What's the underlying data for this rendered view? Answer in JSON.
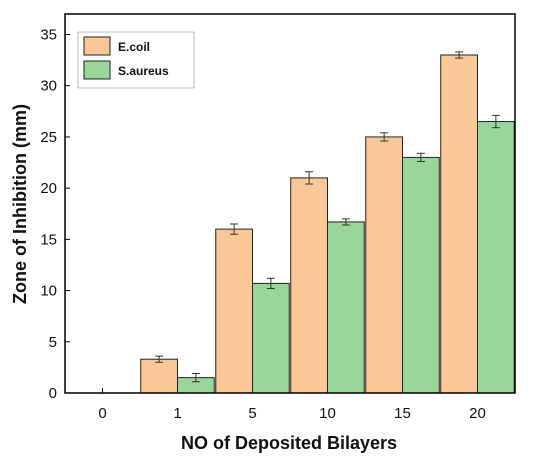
{
  "chart_data": {
    "type": "bar",
    "categories": [
      "0",
      "1",
      "5",
      "10",
      "15",
      "20"
    ],
    "series": [
      {
        "name": "E.coil",
        "color": "#f9c896",
        "values": [
          0,
          3.3,
          16.0,
          21.0,
          25.0,
          33.0
        ],
        "errors": [
          0,
          0.3,
          0.5,
          0.6,
          0.4,
          0.3
        ]
      },
      {
        "name": "S.aureus",
        "color": "#98d69a",
        "values": [
          0,
          1.5,
          10.7,
          16.7,
          23.0,
          26.5
        ],
        "errors": [
          0,
          0.4,
          0.5,
          0.3,
          0.4,
          0.6
        ]
      }
    ],
    "xlabel": "NO of Deposited Bilayers",
    "ylabel": "Zone of Inhibition (mm)",
    "ylim": [
      0,
      37
    ],
    "yticks": [
      0,
      5,
      10,
      15,
      20,
      25,
      30,
      35
    ],
    "grid": false,
    "legend_position": "top-left"
  }
}
